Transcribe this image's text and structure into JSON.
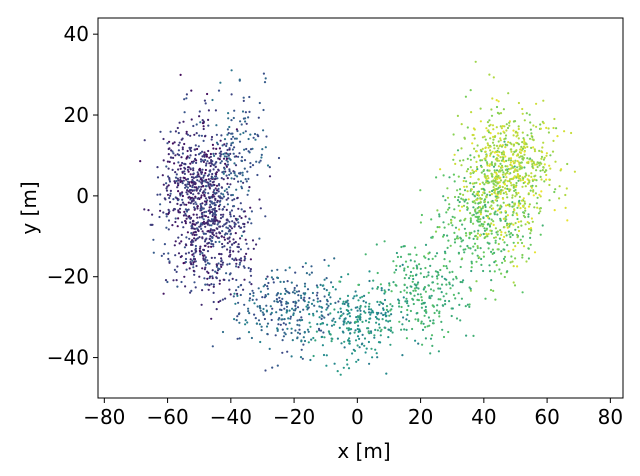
{
  "chart_data": {
    "type": "scatter",
    "xlabel": "x [m]",
    "ylabel": "y [m]",
    "xlim": [
      -82,
      84
    ],
    "ylim": [
      -50,
      44
    ],
    "xticks": [
      -80,
      -60,
      -40,
      -20,
      0,
      20,
      40,
      60,
      80
    ],
    "xtick_labels": [
      "−80",
      "−60",
      "−40",
      "−20",
      "0",
      "20",
      "40",
      "60",
      "80"
    ],
    "yticks": [
      -40,
      -20,
      0,
      20,
      40
    ],
    "ytick_labels": [
      "−40",
      "−20",
      "0",
      "20",
      "40"
    ],
    "grid": false,
    "legend": "none",
    "colormap": "viridis",
    "color_stops": [
      "#440154",
      "#3b528b",
      "#21918c",
      "#5ec962",
      "#fde725"
    ],
    "clusters": [
      {
        "x": -50,
        "y": 2,
        "sx": 6,
        "sy": 8,
        "n": 700,
        "t0": 0.02,
        "t1": 0.28
      },
      {
        "x": -45,
        "y": -12,
        "sx": 7,
        "sy": 7,
        "n": 350,
        "t0": 0.05,
        "t1": 0.3
      },
      {
        "x": -38,
        "y": 10,
        "sx": 5,
        "sy": 8,
        "n": 150,
        "t0": 0.2,
        "t1": 0.4
      },
      {
        "x": -22,
        "y": -28,
        "sx": 8,
        "sy": 5,
        "n": 280,
        "t0": 0.22,
        "t1": 0.45
      },
      {
        "x": 0,
        "y": -31,
        "sx": 8,
        "sy": 5,
        "n": 260,
        "t0": 0.4,
        "t1": 0.6
      },
      {
        "x": 20,
        "y": -24,
        "sx": 8,
        "sy": 6,
        "n": 260,
        "t0": 0.55,
        "t1": 0.72
      },
      {
        "x": 40,
        "y": -6,
        "sx": 7,
        "sy": 8,
        "n": 380,
        "t0": 0.62,
        "t1": 0.82
      },
      {
        "x": 48,
        "y": 6,
        "sx": 7,
        "sy": 8,
        "n": 700,
        "t0": 0.78,
        "t1": 0.98
      }
    ]
  }
}
